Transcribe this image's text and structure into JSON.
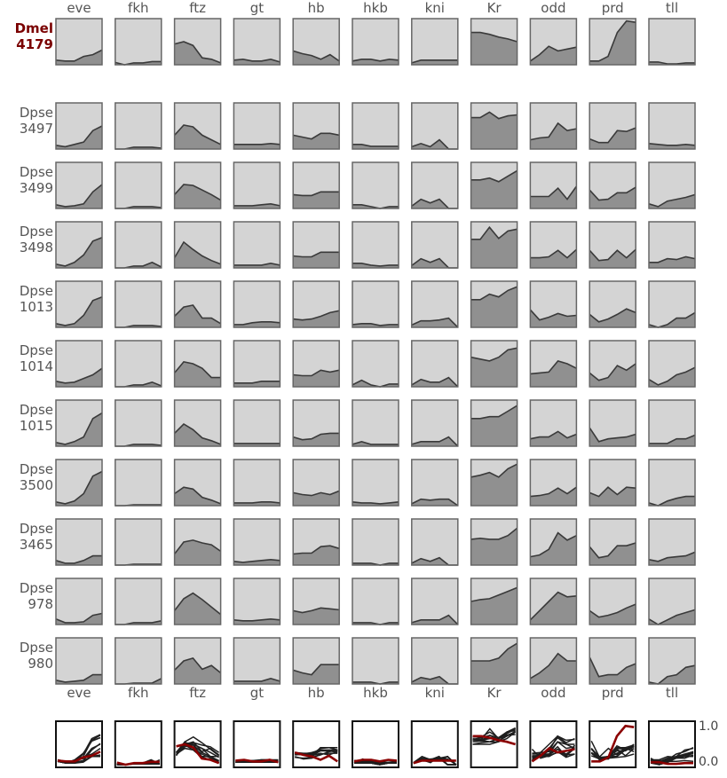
{
  "chart_data": {
    "type": "area",
    "genes": [
      "eve",
      "fkh",
      "ftz",
      "gt",
      "hb",
      "hkb",
      "kni",
      "Kr",
      "odd",
      "prd",
      "tll"
    ],
    "overlay_ticks": [
      "1.0",
      "0.0"
    ],
    "colors": {
      "panel_bg": "#d4d4d4",
      "area_fill": "#909090",
      "line": "#3a3a3a",
      "frame": "#666666",
      "ref_label": "#7a0000",
      "overlay_ref": "#8b0000",
      "overlay_other": "#1e1e1e"
    },
    "rows": [
      {
        "species": "Dmel",
        "id": "4179",
        "reference": true,
        "profiles": [
          [
            0.1,
            0.08,
            0.08,
            0.18,
            0.22,
            0.32
          ],
          [
            0.05,
            0.0,
            0.04,
            0.04,
            0.07,
            0.07
          ],
          [
            0.45,
            0.5,
            0.42,
            0.15,
            0.12,
            0.04
          ],
          [
            0.1,
            0.12,
            0.08,
            0.08,
            0.12,
            0.06
          ],
          [
            0.3,
            0.24,
            0.2,
            0.12,
            0.22,
            0.08
          ],
          [
            0.08,
            0.12,
            0.12,
            0.08,
            0.12,
            0.1
          ],
          [
            0.04,
            0.1,
            0.1,
            0.1,
            0.1,
            0.1
          ],
          [
            0.7,
            0.7,
            0.66,
            0.6,
            0.56,
            0.5
          ],
          [
            0.08,
            0.22,
            0.4,
            0.3,
            0.34,
            0.38
          ],
          [
            0.08,
            0.08,
            0.18,
            0.7,
            0.95,
            0.92
          ],
          [
            0.06,
            0.06,
            0.02,
            0.02,
            0.04,
            0.04
          ]
        ]
      },
      {
        "species": "Dpse",
        "id": "3497",
        "reference": false,
        "profiles": [
          [
            0.08,
            0.05,
            0.1,
            0.15,
            0.4,
            0.5
          ],
          [
            0.0,
            0.0,
            0.04,
            0.04,
            0.04,
            0.02
          ],
          [
            0.3,
            0.52,
            0.48,
            0.3,
            0.2,
            0.1
          ],
          [
            0.1,
            0.1,
            0.1,
            0.1,
            0.12,
            0.1
          ],
          [
            0.3,
            0.26,
            0.22,
            0.34,
            0.34,
            0.3
          ],
          [
            0.1,
            0.1,
            0.06,
            0.06,
            0.06,
            0.06
          ],
          [
            0.05,
            0.12,
            0.05,
            0.2,
            0.0,
            0.0
          ],
          [
            0.68,
            0.68,
            0.8,
            0.66,
            0.72,
            0.74
          ],
          [
            0.2,
            0.24,
            0.26,
            0.56,
            0.4,
            0.44
          ],
          [
            0.22,
            0.14,
            0.14,
            0.4,
            0.38,
            0.46
          ],
          [
            0.12,
            0.1,
            0.08,
            0.08,
            0.1,
            0.08
          ]
        ]
      },
      {
        "species": "Dpse",
        "id": "3499",
        "reference": false,
        "profiles": [
          [
            0.08,
            0.04,
            0.06,
            0.1,
            0.36,
            0.52
          ],
          [
            0.0,
            0.0,
            0.04,
            0.04,
            0.04,
            0.02
          ],
          [
            0.3,
            0.52,
            0.5,
            0.4,
            0.3,
            0.18
          ],
          [
            0.06,
            0.06,
            0.06,
            0.08,
            0.1,
            0.06
          ],
          [
            0.3,
            0.28,
            0.28,
            0.36,
            0.36,
            0.36
          ],
          [
            0.08,
            0.08,
            0.04,
            0.0,
            0.04,
            0.04
          ],
          [
            0.05,
            0.2,
            0.12,
            0.2,
            0.0,
            0.0
          ],
          [
            0.62,
            0.62,
            0.66,
            0.58,
            0.7,
            0.82
          ],
          [
            0.26,
            0.26,
            0.26,
            0.44,
            0.2,
            0.48
          ],
          [
            0.4,
            0.18,
            0.2,
            0.34,
            0.34,
            0.46
          ],
          [
            0.1,
            0.04,
            0.16,
            0.2,
            0.24,
            0.3
          ]
        ]
      },
      {
        "species": "Dpse",
        "id": "3498",
        "reference": false,
        "profiles": [
          [
            0.08,
            0.04,
            0.12,
            0.28,
            0.58,
            0.66
          ],
          [
            0.0,
            0.0,
            0.04,
            0.04,
            0.12,
            0.02
          ],
          [
            0.22,
            0.56,
            0.4,
            0.26,
            0.16,
            0.08
          ],
          [
            0.06,
            0.06,
            0.06,
            0.06,
            0.1,
            0.06
          ],
          [
            0.26,
            0.24,
            0.24,
            0.34,
            0.34,
            0.34
          ],
          [
            0.1,
            0.1,
            0.06,
            0.04,
            0.06,
            0.06
          ],
          [
            0.05,
            0.2,
            0.12,
            0.2,
            0.0,
            0.0
          ],
          [
            0.62,
            0.62,
            0.88,
            0.64,
            0.8,
            0.84
          ],
          [
            0.22,
            0.22,
            0.24,
            0.38,
            0.22,
            0.4
          ],
          [
            0.38,
            0.16,
            0.18,
            0.38,
            0.22,
            0.4
          ],
          [
            0.12,
            0.12,
            0.2,
            0.18,
            0.24,
            0.2
          ]
        ]
      },
      {
        "species": "Dpse",
        "id": "1013",
        "reference": false,
        "profiles": [
          [
            0.08,
            0.04,
            0.08,
            0.26,
            0.58,
            0.66
          ],
          [
            0.0,
            0.0,
            0.04,
            0.04,
            0.04,
            0.02
          ],
          [
            0.24,
            0.44,
            0.48,
            0.2,
            0.2,
            0.08
          ],
          [
            0.06,
            0.06,
            0.1,
            0.12,
            0.12,
            0.1
          ],
          [
            0.18,
            0.16,
            0.18,
            0.24,
            0.32,
            0.36
          ],
          [
            0.06,
            0.08,
            0.08,
            0.04,
            0.06,
            0.06
          ],
          [
            0.05,
            0.14,
            0.14,
            0.16,
            0.2,
            0.0
          ],
          [
            0.6,
            0.6,
            0.72,
            0.66,
            0.8,
            0.88
          ],
          [
            0.38,
            0.16,
            0.22,
            0.3,
            0.24,
            0.26
          ],
          [
            0.28,
            0.12,
            0.18,
            0.28,
            0.4,
            0.32
          ],
          [
            0.06,
            0.0,
            0.06,
            0.2,
            0.2,
            0.32
          ]
        ]
      },
      {
        "species": "Dpse",
        "id": "1014",
        "reference": false,
        "profiles": [
          [
            0.12,
            0.08,
            0.1,
            0.18,
            0.26,
            0.4
          ],
          [
            0.0,
            0.0,
            0.04,
            0.04,
            0.1,
            0.02
          ],
          [
            0.3,
            0.54,
            0.5,
            0.4,
            0.2,
            0.2
          ],
          [
            0.08,
            0.08,
            0.08,
            0.12,
            0.12,
            0.12
          ],
          [
            0.26,
            0.24,
            0.24,
            0.36,
            0.32,
            0.36
          ],
          [
            0.04,
            0.14,
            0.04,
            0.0,
            0.06,
            0.06
          ],
          [
            0.04,
            0.16,
            0.1,
            0.1,
            0.2,
            0.0
          ],
          [
            0.64,
            0.6,
            0.56,
            0.64,
            0.8,
            0.84
          ],
          [
            0.28,
            0.3,
            0.32,
            0.56,
            0.5,
            0.4
          ],
          [
            0.3,
            0.14,
            0.2,
            0.46,
            0.36,
            0.5
          ],
          [
            0.16,
            0.04,
            0.12,
            0.26,
            0.32,
            0.42
          ]
        ]
      },
      {
        "species": "Dpse",
        "id": "1015",
        "reference": false,
        "profiles": [
          [
            0.08,
            0.04,
            0.1,
            0.2,
            0.6,
            0.72
          ],
          [
            0.0,
            0.0,
            0.04,
            0.04,
            0.04,
            0.02
          ],
          [
            0.28,
            0.48,
            0.36,
            0.18,
            0.12,
            0.04
          ],
          [
            0.06,
            0.06,
            0.06,
            0.06,
            0.06,
            0.06
          ],
          [
            0.2,
            0.14,
            0.16,
            0.26,
            0.28,
            0.28
          ],
          [
            0.04,
            0.1,
            0.04,
            0.04,
            0.04,
            0.04
          ],
          [
            0.04,
            0.1,
            0.1,
            0.1,
            0.2,
            0.0
          ],
          [
            0.6,
            0.6,
            0.64,
            0.64,
            0.76,
            0.88
          ],
          [
            0.16,
            0.2,
            0.2,
            0.32,
            0.18,
            0.26
          ],
          [
            0.4,
            0.1,
            0.16,
            0.18,
            0.2,
            0.26
          ],
          [
            0.06,
            0.06,
            0.06,
            0.16,
            0.16,
            0.24
          ]
        ]
      },
      {
        "species": "Dpse",
        "id": "3500",
        "reference": false,
        "profiles": [
          [
            0.08,
            0.04,
            0.1,
            0.26,
            0.64,
            0.74
          ],
          [
            0.0,
            0.0,
            0.02,
            0.02,
            0.02,
            0.02
          ],
          [
            0.26,
            0.4,
            0.36,
            0.18,
            0.12,
            0.04
          ],
          [
            0.06,
            0.06,
            0.06,
            0.08,
            0.08,
            0.06
          ],
          [
            0.28,
            0.24,
            0.22,
            0.28,
            0.24,
            0.32
          ],
          [
            0.08,
            0.06,
            0.06,
            0.04,
            0.06,
            0.08
          ],
          [
            0.04,
            0.14,
            0.12,
            0.14,
            0.14,
            0.0
          ],
          [
            0.62,
            0.66,
            0.72,
            0.62,
            0.8,
            0.9
          ],
          [
            0.2,
            0.22,
            0.26,
            0.38,
            0.26,
            0.4
          ],
          [
            0.28,
            0.2,
            0.4,
            0.24,
            0.4,
            0.38
          ],
          [
            0.06,
            0.0,
            0.1,
            0.16,
            0.2,
            0.2
          ]
        ]
      },
      {
        "species": "Dpse",
        "id": "3465",
        "reference": false,
        "profiles": [
          [
            0.1,
            0.04,
            0.04,
            0.1,
            0.2,
            0.2
          ],
          [
            0.0,
            0.0,
            0.02,
            0.02,
            0.02,
            0.02
          ],
          [
            0.24,
            0.5,
            0.54,
            0.48,
            0.44,
            0.3
          ],
          [
            0.08,
            0.06,
            0.08,
            0.1,
            0.12,
            0.1
          ],
          [
            0.24,
            0.26,
            0.26,
            0.4,
            0.42,
            0.36
          ],
          [
            0.04,
            0.04,
            0.04,
            0.0,
            0.04,
            0.04
          ],
          [
            0.04,
            0.14,
            0.08,
            0.16,
            0.0,
            0.0
          ],
          [
            0.56,
            0.58,
            0.56,
            0.56,
            0.64,
            0.8
          ],
          [
            0.18,
            0.22,
            0.34,
            0.7,
            0.54,
            0.64
          ],
          [
            0.4,
            0.16,
            0.2,
            0.42,
            0.42,
            0.48
          ],
          [
            0.12,
            0.08,
            0.16,
            0.18,
            0.2,
            0.28
          ]
        ]
      },
      {
        "species": "Dpse",
        "id": "978",
        "reference": false,
        "profiles": [
          [
            0.12,
            0.04,
            0.04,
            0.06,
            0.2,
            0.24
          ],
          [
            0.0,
            0.0,
            0.04,
            0.04,
            0.04,
            0.08
          ],
          [
            0.3,
            0.56,
            0.68,
            0.54,
            0.38,
            0.22
          ],
          [
            0.1,
            0.08,
            0.08,
            0.1,
            0.12,
            0.1
          ],
          [
            0.3,
            0.26,
            0.3,
            0.36,
            0.34,
            0.32
          ],
          [
            0.04,
            0.04,
            0.04,
            0.0,
            0.04,
            0.04
          ],
          [
            0.04,
            0.1,
            0.1,
            0.1,
            0.2,
            0.0
          ],
          [
            0.5,
            0.54,
            0.56,
            0.64,
            0.72,
            0.8
          ],
          [
            0.1,
            0.3,
            0.5,
            0.7,
            0.6,
            0.62
          ],
          [
            0.3,
            0.16,
            0.2,
            0.26,
            0.36,
            0.44
          ],
          [
            0.12,
            0.0,
            0.1,
            0.2,
            0.26,
            0.32
          ]
        ]
      },
      {
        "species": "Dpse",
        "id": "980",
        "reference": false,
        "profiles": [
          [
            0.08,
            0.04,
            0.06,
            0.08,
            0.2,
            0.2
          ],
          [
            0.0,
            0.0,
            0.02,
            0.02,
            0.02,
            0.12
          ],
          [
            0.3,
            0.5,
            0.56,
            0.32,
            0.4,
            0.24
          ],
          [
            0.06,
            0.06,
            0.06,
            0.06,
            0.12,
            0.06
          ],
          [
            0.3,
            0.24,
            0.2,
            0.42,
            0.42,
            0.42
          ],
          [
            0.04,
            0.04,
            0.04,
            0.0,
            0.04,
            0.04
          ],
          [
            0.04,
            0.14,
            0.1,
            0.16,
            0.0,
            0.0
          ],
          [
            0.5,
            0.5,
            0.5,
            0.56,
            0.76,
            0.88
          ],
          [
            0.12,
            0.24,
            0.4,
            0.66,
            0.5,
            0.5
          ],
          [
            0.58,
            0.16,
            0.2,
            0.2,
            0.36,
            0.44
          ],
          [
            0.04,
            0.0,
            0.16,
            0.2,
            0.36,
            0.4
          ]
        ]
      }
    ]
  }
}
